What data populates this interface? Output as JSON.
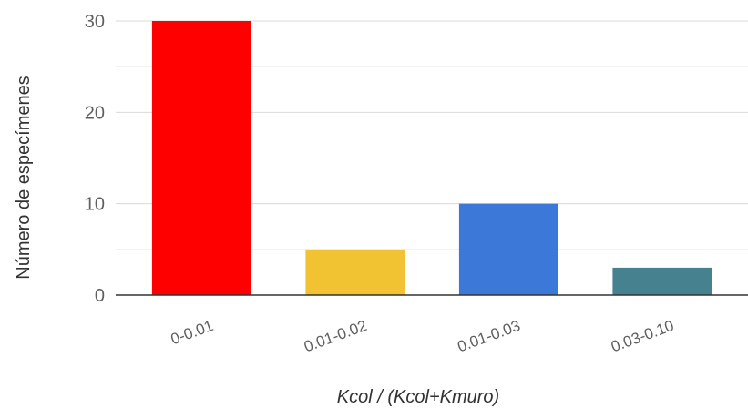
{
  "chart_data": {
    "type": "bar",
    "title": "",
    "xlabel": "Kcol / (Kcol+Kmuro)",
    "ylabel": "Número de especímenes",
    "categories": [
      "0-0.01",
      "0.01-0.02",
      "0.01-0.03",
      "0.03-0.10"
    ],
    "values": [
      30,
      5,
      10,
      3
    ],
    "colors": [
      "#ff0000",
      "#f1c232",
      "#3c78d8",
      "#45818e"
    ],
    "ylim": [
      0,
      30
    ],
    "yticks": [
      0,
      10,
      20,
      30
    ],
    "minor_gridlines": true,
    "grid": true,
    "legend": "none"
  }
}
